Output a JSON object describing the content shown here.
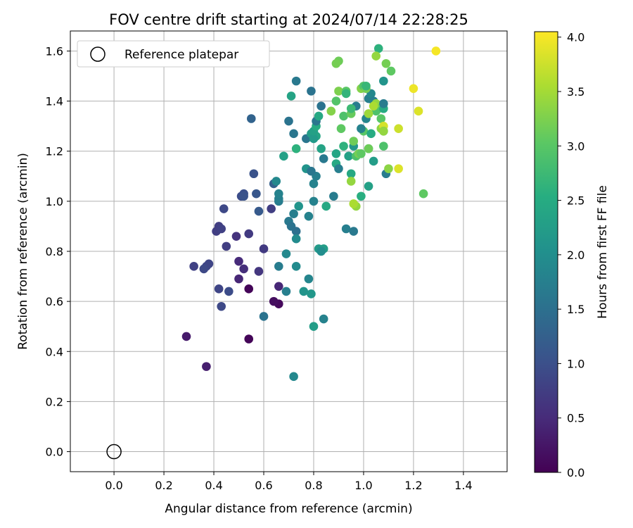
{
  "chart_data": {
    "type": "scatter",
    "title": "FOV centre drift starting at 2024/07/14 22:28:25",
    "xlabel": "Angular distance from reference (arcmin)",
    "ylabel": "Rotation from reference (arcmin)",
    "xlim": [
      -0.175,
      1.575
    ],
    "ylim": [
      -0.08,
      1.68
    ],
    "xticks": [
      "0.0",
      "0.2",
      "0.4",
      "0.6",
      "0.8",
      "1.0",
      "1.2",
      "1.4"
    ],
    "yticks": [
      "0.0",
      "0.2",
      "0.4",
      "0.6",
      "0.8",
      "1.0",
      "1.2",
      "1.4",
      "1.6"
    ],
    "grid": true,
    "legend": {
      "position": "top-left",
      "entries": [
        "Reference platepar"
      ]
    },
    "reference_point": {
      "x": 0.0,
      "y": 0.0,
      "label": "Reference platepar"
    },
    "colorbar": {
      "label": "Hours from first FF file",
      "colormap": "viridis",
      "range": [
        0.0,
        4.05
      ],
      "ticks": [
        "0.0",
        "0.5",
        "1.0",
        "1.5",
        "2.0",
        "2.5",
        "3.0",
        "3.5",
        "4.0"
      ]
    },
    "points": [
      [
        0.54,
        0.65,
        0.05
      ],
      [
        0.54,
        0.45,
        0.05
      ],
      [
        0.66,
        0.59,
        0.1
      ],
      [
        0.64,
        0.6,
        0.15
      ],
      [
        0.29,
        0.46,
        0.3
      ],
      [
        0.37,
        0.34,
        0.35
      ],
      [
        0.5,
        0.69,
        0.45
      ],
      [
        0.66,
        0.66,
        0.45
      ],
      [
        0.52,
        0.73,
        0.55
      ],
      [
        0.5,
        0.76,
        0.5
      ],
      [
        0.58,
        0.72,
        0.65
      ],
      [
        0.6,
        0.81,
        0.7
      ],
      [
        0.49,
        0.86,
        0.6
      ],
      [
        0.54,
        0.87,
        0.7
      ],
      [
        0.41,
        0.88,
        0.75
      ],
      [
        0.42,
        0.9,
        0.75
      ],
      [
        0.43,
        0.89,
        0.8
      ],
      [
        0.32,
        0.74,
        0.8
      ],
      [
        0.37,
        0.74,
        0.85
      ],
      [
        0.38,
        0.75,
        0.85
      ],
      [
        0.36,
        0.73,
        0.9
      ],
      [
        0.42,
        0.65,
        0.85
      ],
      [
        0.46,
        0.64,
        0.95
      ],
      [
        0.43,
        0.58,
        0.9
      ],
      [
        0.45,
        0.82,
        0.75
      ],
      [
        0.44,
        0.97,
        0.9
      ],
      [
        0.51,
        1.02,
        0.95
      ],
      [
        0.52,
        1.03,
        1.0
      ],
      [
        0.52,
        1.02,
        1.05
      ],
      [
        0.63,
        0.97,
        0.75
      ],
      [
        0.56,
        1.11,
        1.05
      ],
      [
        0.57,
        1.03,
        1.1
      ],
      [
        0.55,
        1.33,
        1.3
      ],
      [
        0.64,
        1.07,
        1.25
      ],
      [
        0.58,
        0.96,
        1.15
      ],
      [
        0.6,
        0.54,
        1.55
      ],
      [
        0.69,
        0.64,
        1.75
      ],
      [
        0.66,
        0.74,
        1.7
      ],
      [
        0.69,
        0.79,
        1.9
      ],
      [
        0.66,
        1.0,
        1.7
      ],
      [
        0.66,
        1.01,
        1.75
      ],
      [
        0.65,
        1.08,
        1.9
      ],
      [
        0.66,
        1.03,
        1.8
      ],
      [
        0.7,
        0.92,
        1.65
      ],
      [
        0.71,
        0.9,
        1.55
      ],
      [
        0.73,
        0.88,
        1.5
      ],
      [
        0.73,
        0.85,
        1.95
      ],
      [
        0.72,
        0.95,
        1.75
      ],
      [
        0.73,
        0.74,
        1.95
      ],
      [
        0.76,
        0.64,
        2.1
      ],
      [
        0.78,
        0.69,
        1.85
      ],
      [
        0.79,
        0.63,
        2.15
      ],
      [
        0.8,
        0.5,
        2.25
      ],
      [
        0.72,
        0.3,
        1.9
      ],
      [
        0.84,
        0.53,
        1.8
      ],
      [
        0.78,
        0.94,
        1.8
      ],
      [
        0.74,
        0.98,
        2.1
      ],
      [
        0.8,
        1.0,
        1.8
      ],
      [
        0.82,
        0.81,
        2.2
      ],
      [
        0.84,
        0.81,
        2.25
      ],
      [
        0.83,
        0.8,
        2.0
      ],
      [
        0.85,
        0.98,
        2.45
      ],
      [
        0.8,
        1.07,
        1.8
      ],
      [
        0.81,
        1.1,
        1.75
      ],
      [
        0.77,
        1.13,
        2.1
      ],
      [
        0.77,
        1.25,
        1.6
      ],
      [
        0.79,
        1.27,
        2.25
      ],
      [
        0.79,
        1.12,
        1.6
      ],
      [
        0.83,
        1.21,
        2.35
      ],
      [
        0.84,
        1.17,
        1.65
      ],
      [
        0.81,
        1.26,
        2.4
      ],
      [
        0.8,
        1.25,
        2.2
      ],
      [
        0.8,
        1.28,
        2.3
      ],
      [
        0.81,
        1.3,
        2.5
      ],
      [
        0.81,
        1.32,
        1.6
      ],
      [
        0.83,
        1.38,
        1.55
      ],
      [
        0.82,
        1.34,
        2.45
      ],
      [
        0.72,
        1.27,
        1.6
      ],
      [
        0.7,
        1.32,
        1.55
      ],
      [
        0.73,
        1.21,
        2.6
      ],
      [
        0.68,
        1.18,
        2.3
      ],
      [
        0.71,
        1.42,
        2.35
      ],
      [
        0.73,
        1.48,
        1.65
      ],
      [
        0.79,
        1.44,
        1.55
      ],
      [
        0.88,
        1.02,
        1.7
      ],
      [
        0.89,
        1.15,
        2.45
      ],
      [
        0.89,
        1.19,
        2.4
      ],
      [
        0.9,
        1.13,
        1.75
      ],
      [
        0.92,
        1.22,
        2.6
      ],
      [
        0.93,
        0.89,
        1.75
      ],
      [
        0.96,
        0.88,
        1.65
      ],
      [
        0.95,
        1.11,
        2.45
      ],
      [
        0.94,
        1.18,
        2.3
      ],
      [
        0.97,
        1.38,
        1.7
      ],
      [
        0.97,
        1.18,
        2.9
      ],
      [
        0.99,
        1.02,
        2.55
      ],
      [
        1.02,
        1.06,
        2.3
      ],
      [
        0.96,
        1.22,
        2.15
      ],
      [
        1.0,
        1.28,
        3.0
      ],
      [
        0.99,
        1.29,
        1.8
      ],
      [
        1.01,
        1.33,
        1.85
      ],
      [
        1.02,
        1.41,
        1.75
      ],
      [
        1.03,
        1.43,
        1.9
      ],
      [
        1.04,
        1.4,
        1.75
      ],
      [
        1.05,
        1.39,
        3.4
      ],
      [
        1.06,
        1.37,
        3.2
      ],
      [
        1.04,
        1.16,
        2.25
      ],
      [
        1.02,
        1.21,
        2.45
      ],
      [
        1.03,
        1.27,
        2.5
      ],
      [
        1.05,
        1.36,
        2.9
      ],
      [
        1.07,
        1.29,
        3.35
      ],
      [
        1.07,
        1.33,
        3.0
      ],
      [
        1.08,
        1.37,
        2.5
      ],
      [
        1.08,
        1.39,
        1.7
      ],
      [
        1.08,
        1.48,
        2.1
      ],
      [
        1.08,
        1.3,
        3.8
      ],
      [
        1.08,
        1.28,
        2.55
      ],
      [
        1.09,
        1.11,
        1.7
      ],
      [
        1.1,
        1.13,
        3.35
      ],
      [
        1.06,
        1.61,
        2.6
      ],
      [
        1.09,
        1.55,
        3.2
      ],
      [
        1.11,
        1.52,
        3.05
      ],
      [
        1.05,
        1.58,
        3.4
      ],
      [
        0.9,
        1.56,
        3.15
      ],
      [
        0.89,
        1.55,
        3.2
      ],
      [
        0.89,
        1.4,
        2.95
      ],
      [
        0.9,
        1.44,
        3.25
      ],
      [
        0.93,
        1.44,
        3.0
      ],
      [
        0.93,
        1.43,
        2.65
      ],
      [
        0.92,
        1.34,
        2.9
      ],
      [
        0.91,
        1.29,
        3.05
      ],
      [
        0.87,
        1.36,
        3.3
      ],
      [
        0.95,
        1.35,
        3.1
      ],
      [
        0.95,
        1.37,
        2.75
      ],
      [
        0.95,
        1.08,
        3.4
      ],
      [
        0.96,
        1.24,
        3.15
      ],
      [
        0.97,
        0.98,
        3.4
      ],
      [
        0.96,
        0.99,
        3.55
      ],
      [
        0.98,
        1.19,
        3.2
      ],
      [
        0.99,
        1.19,
        3.05
      ],
      [
        0.99,
        1.45,
        3.3
      ],
      [
        1.0,
        1.46,
        2.95
      ],
      [
        1.01,
        1.45,
        3.2
      ],
      [
        1.01,
        1.46,
        2.7
      ],
      [
        1.02,
        1.35,
        3.45
      ],
      [
        1.04,
        1.38,
        3.55
      ],
      [
        1.02,
        1.21,
        3.15
      ],
      [
        1.08,
        1.22,
        2.9
      ],
      [
        1.08,
        1.28,
        3.4
      ],
      [
        1.14,
        1.29,
        3.75
      ],
      [
        1.14,
        1.13,
        3.85
      ],
      [
        1.22,
        1.36,
        3.85
      ],
      [
        1.2,
        1.45,
        3.95
      ],
      [
        1.29,
        1.6,
        4.0
      ],
      [
        1.24,
        1.03,
        3.05
      ]
    ]
  }
}
